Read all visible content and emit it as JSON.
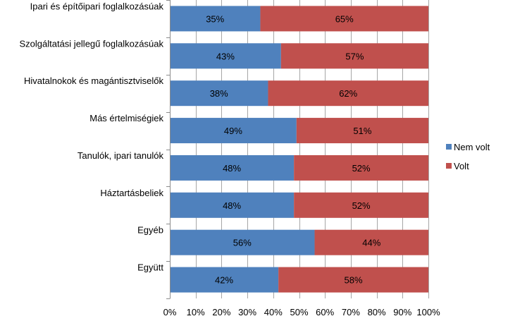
{
  "chart_data": {
    "type": "bar",
    "orientation": "horizontal",
    "stacked": "percent",
    "categories": [
      "Ipari és építőipari foglalkozásúak",
      "Szolgáltatási jellegű foglalkozásúak",
      "Hivatalnokok és magántisztviselők",
      "Más értelmiségiek",
      "Tanulók, ipari tanulók",
      "Háztartásbeliek",
      "Egyéb",
      "Együtt"
    ],
    "series": [
      {
        "name": "Nem volt",
        "color": "#4f81bd",
        "values": [
          35,
          43,
          38,
          49,
          48,
          48,
          56,
          42
        ]
      },
      {
        "name": "Volt",
        "color": "#c0504d",
        "values": [
          65,
          57,
          62,
          51,
          52,
          52,
          44,
          58
        ]
      }
    ],
    "data_labels": [
      [
        "35%",
        "43%",
        "38%",
        "49%",
        "48%",
        "48%",
        "56%",
        "42%"
      ],
      [
        "65%",
        "57%",
        "62%",
        "51%",
        "52%",
        "52%",
        "44%",
        "58%"
      ]
    ],
    "xlim": [
      0,
      100
    ],
    "x_ticks": [
      "0%",
      "10%",
      "20%",
      "30%",
      "40%",
      "50%",
      "60%",
      "70%",
      "80%",
      "90%",
      "100%"
    ],
    "grid": "vertical",
    "legend_position": "right"
  }
}
